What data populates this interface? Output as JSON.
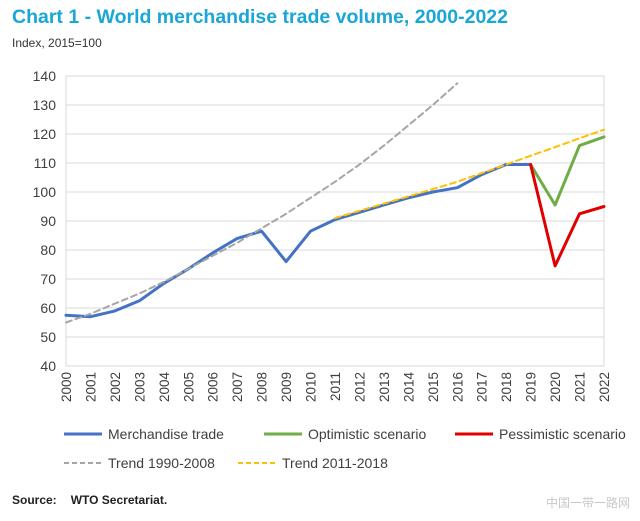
{
  "header": {
    "title": "Chart 1 - World merchandise trade volume, 2000-2022",
    "subtitle": "Index, 2015=100"
  },
  "footer": {
    "source_label": "Source:",
    "source_text": "WTO Secretariat.",
    "watermark": "中国一带一路网"
  },
  "chart_data": {
    "type": "line",
    "x": [
      2000,
      2001,
      2002,
      2003,
      2004,
      2005,
      2006,
      2007,
      2008,
      2009,
      2010,
      2011,
      2012,
      2013,
      2014,
      2015,
      2016,
      2017,
      2018,
      2019,
      2020,
      2021,
      2022
    ],
    "ylim": [
      40,
      140
    ],
    "yticks": [
      40,
      50,
      60,
      70,
      80,
      90,
      100,
      110,
      120,
      130,
      140
    ],
    "grid": true,
    "legend_position": "bottom",
    "series": [
      {
        "name": "Merchandise trade",
        "color": "#4472c4",
        "dash": "",
        "width": 3,
        "x": [
          2000,
          2001,
          2002,
          2003,
          2004,
          2005,
          2006,
          2007,
          2008,
          2009,
          2010,
          2011,
          2012,
          2013,
          2014,
          2015,
          2016,
          2017,
          2018,
          2019
        ],
        "values": [
          57.5,
          57,
          59,
          62.5,
          68.5,
          73.5,
          79,
          84,
          86.5,
          76,
          86.5,
          90.5,
          93,
          95.5,
          98,
          100,
          101.5,
          106,
          109.5,
          109.5
        ]
      },
      {
        "name": "Optimistic scenario",
        "color": "#70ad47",
        "dash": "",
        "width": 3,
        "x": [
          2019,
          2020,
          2021,
          2022
        ],
        "values": [
          109.5,
          95.5,
          116,
          119
        ]
      },
      {
        "name": "Pessimistic scenario",
        "color": "#e00000",
        "dash": "",
        "width": 3,
        "x": [
          2019,
          2020,
          2021,
          2022
        ],
        "values": [
          109.5,
          74.5,
          92.5,
          95
        ]
      },
      {
        "name": "Trend 1990-2008",
        "color": "#a6a6a6",
        "dash": "6,4",
        "width": 2,
        "x": [
          2000,
          2001,
          2002,
          2003,
          2004,
          2005,
          2006,
          2007,
          2008,
          2009,
          2010,
          2011,
          2012,
          2013,
          2014,
          2015,
          2016
        ],
        "values": [
          55,
          58,
          61.5,
          65,
          69,
          73.5,
          78,
          82.5,
          87.5,
          92.5,
          98,
          103.5,
          109.5,
          116,
          123,
          130,
          137.5
        ]
      },
      {
        "name": "Trend 2011-2018",
        "color": "#ffc000",
        "dash": "6,4",
        "width": 2,
        "x": [
          2011,
          2012,
          2013,
          2014,
          2015,
          2016,
          2017,
          2018,
          2019,
          2020,
          2021,
          2022
        ],
        "values": [
          91,
          93.5,
          96,
          98.5,
          101,
          103.5,
          106.5,
          109.5,
          112.5,
          115.5,
          118.5,
          121.5
        ]
      }
    ]
  }
}
